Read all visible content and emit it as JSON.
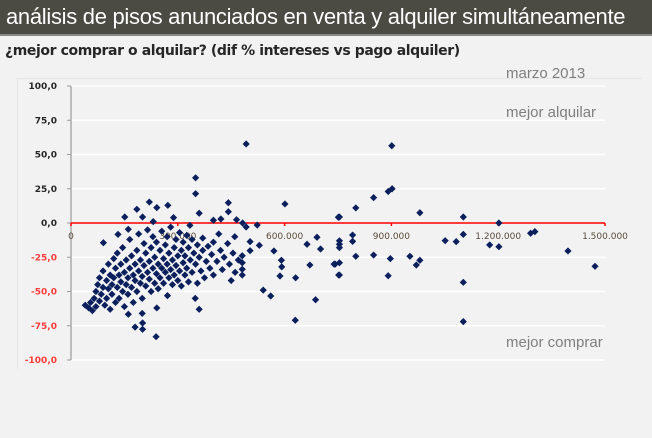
{
  "header": {
    "title": "análisis de pisos anunciados en venta y alquiler simultáneamente"
  },
  "subtitle": "¿mejor comprar o alquilar? (dif % intereses vs pago alquiler)",
  "annotations": {
    "date": "marzo 2013",
    "top": "mejor alquilar",
    "bottom": "mejor comprar"
  },
  "colors": {
    "points": "#0a1f5c",
    "zero_line": "#ff0000",
    "negative_labels": "#ff3b3b",
    "positive_labels": "#262626"
  },
  "chart_data": {
    "type": "scatter",
    "title": "",
    "xlabel": "",
    "ylabel": "",
    "xlim": [
      0,
      1500000
    ],
    "ylim": [
      -100,
      100
    ],
    "x_ticks": [
      "0",
      "300.000",
      "600.000",
      "900.000",
      "1.200.000",
      "1.500.000"
    ],
    "x_tick_values": [
      0,
      300000,
      600000,
      900000,
      1200000,
      1500000
    ],
    "y_ticks": [
      "100,0",
      "75,0",
      "50,0",
      "25,0",
      "0,0",
      "-25,0",
      "-50,0",
      "-75,0",
      "-100,0"
    ],
    "y_tick_values": [
      100,
      75,
      50,
      25,
      0,
      -25,
      -50,
      -75,
      -100
    ],
    "grid": "horizontal",
    "reference_line": 0,
    "marker": "diamond",
    "points": [
      [
        492000,
        57.7
      ],
      [
        901000,
        56.4
      ],
      [
        350000,
        33
      ],
      [
        350000,
        21.4
      ],
      [
        902000,
        25
      ],
      [
        891000,
        23
      ],
      [
        850000,
        18.5
      ],
      [
        601000,
        13.9
      ],
      [
        800000,
        11
      ],
      [
        442000,
        14.8
      ],
      [
        442000,
        8.2
      ],
      [
        360000,
        7.1
      ],
      [
        272000,
        12.9
      ],
      [
        220000,
        15.3
      ],
      [
        241000,
        11.2
      ],
      [
        185000,
        10
      ],
      [
        151000,
        4.4
      ],
      [
        201000,
        4.4
      ],
      [
        288000,
        3.9
      ],
      [
        231000,
        1
      ],
      [
        754000,
        4.4
      ],
      [
        751000,
        4.2
      ],
      [
        980000,
        7.5
      ],
      [
        1102000,
        4.4
      ],
      [
        1202000,
        0
      ],
      [
        334000,
        -1.7
      ],
      [
        421000,
        2.9
      ],
      [
        400000,
        2
      ],
      [
        465000,
        2.4
      ],
      [
        482000,
        0
      ],
      [
        492000,
        -2.9
      ],
      [
        523000,
        -1.5
      ],
      [
        161000,
        -4.6
      ],
      [
        132000,
        -8.3
      ],
      [
        91000,
        -14.4
      ],
      [
        1291000,
        -7.5
      ],
      [
        1303000,
        -6.3
      ],
      [
        1102000,
        -8.3
      ],
      [
        1051000,
        -12.9
      ],
      [
        1082000,
        -13.6
      ],
      [
        1176000,
        -16
      ],
      [
        1202000,
        -17.3
      ],
      [
        1396000,
        -20.4
      ],
      [
        1472000,
        -31.6
      ],
      [
        1102000,
        -43.3
      ],
      [
        1102000,
        -72
      ],
      [
        850000,
        -23.4
      ],
      [
        800000,
        -24.3
      ],
      [
        897000,
        -26
      ],
      [
        952000,
        -24.3
      ],
      [
        980000,
        -27.2
      ],
      [
        970000,
        -30.7
      ],
      [
        891000,
        -38.5
      ],
      [
        754000,
        -38
      ],
      [
        739000,
        -30
      ],
      [
        754000,
        -29
      ],
      [
        791000,
        -8.8
      ],
      [
        791000,
        -13.4
      ],
      [
        754000,
        -13
      ],
      [
        754000,
        -15.5
      ],
      [
        754000,
        -18
      ],
      [
        630000,
        -71
      ],
      [
        239000,
        -83
      ],
      [
        540000,
        -49
      ],
      [
        561000,
        -53.3
      ],
      [
        687000,
        -56
      ],
      [
        631000,
        -40
      ],
      [
        587000,
        -38.7
      ],
      [
        592000,
        -32
      ],
      [
        591000,
        -27.2
      ],
      [
        663000,
        -15.5
      ],
      [
        691000,
        -10.4
      ],
      [
        701000,
        -19
      ],
      [
        671000,
        -30.7
      ],
      [
        742000,
        -30
      ],
      [
        752000,
        -38
      ],
      [
        570000,
        -20.4
      ],
      [
        529000,
        -16.3
      ],
      [
        503000,
        -13.6
      ],
      [
        503000,
        -20.2
      ],
      [
        481000,
        -23.9
      ],
      [
        481000,
        -29
      ],
      [
        481000,
        -33.8
      ],
      [
        481000,
        -38
      ],
      [
        461000,
        -36
      ],
      [
        360000,
        -63
      ],
      [
        349000,
        -55
      ],
      [
        271000,
        -53
      ],
      [
        241000,
        -62
      ],
      [
        180000,
        -76
      ],
      [
        201000,
        -73
      ],
      [
        201000,
        -77.6
      ],
      [
        161000,
        -66.6
      ],
      [
        200000,
        -66
      ],
      [
        40000,
        -60
      ],
      [
        50000,
        -62
      ],
      [
        55000,
        -58
      ],
      [
        60000,
        -64
      ],
      [
        65000,
        -55
      ],
      [
        70000,
        -50
      ],
      [
        70000,
        -61
      ],
      [
        75000,
        -45
      ],
      [
        80000,
        -40
      ],
      [
        80000,
        -57
      ],
      [
        85000,
        -52
      ],
      [
        90000,
        -35
      ],
      [
        90000,
        -47
      ],
      [
        95000,
        -60
      ],
      [
        100000,
        -42
      ],
      [
        100000,
        -55
      ],
      [
        105000,
        -30
      ],
      [
        105000,
        -48
      ],
      [
        110000,
        -38
      ],
      [
        110000,
        -63
      ],
      [
        115000,
        -45
      ],
      [
        115000,
        -52
      ],
      [
        120000,
        -26
      ],
      [
        120000,
        -40
      ],
      [
        125000,
        -58
      ],
      [
        125000,
        -33
      ],
      [
        130000,
        -47
      ],
      [
        130000,
        -22
      ],
      [
        135000,
        -38
      ],
      [
        135000,
        -55
      ],
      [
        140000,
        -43
      ],
      [
        140000,
        -30
      ],
      [
        145000,
        -50
      ],
      [
        145000,
        -18
      ],
      [
        150000,
        -36
      ],
      [
        150000,
        -61
      ],
      [
        155000,
        -27
      ],
      [
        155000,
        -45
      ],
      [
        160000,
        -40
      ],
      [
        160000,
        -52
      ],
      [
        165000,
        -33
      ],
      [
        165000,
        -12
      ],
      [
        170000,
        -47
      ],
      [
        170000,
        -24
      ],
      [
        175000,
        -38
      ],
      [
        175000,
        -58
      ],
      [
        180000,
        -30
      ],
      [
        180000,
        -42
      ],
      [
        185000,
        -20
      ],
      [
        185000,
        -50
      ],
      [
        190000,
        -35
      ],
      [
        190000,
        -8
      ],
      [
        195000,
        -44
      ],
      [
        195000,
        -27
      ],
      [
        200000,
        -39
      ],
      [
        200000,
        -55
      ],
      [
        205000,
        -15
      ],
      [
        205000,
        -31
      ],
      [
        210000,
        -46
      ],
      [
        210000,
        -22
      ],
      [
        215000,
        -36
      ],
      [
        215000,
        -5
      ],
      [
        220000,
        -41
      ],
      [
        220000,
        -28
      ],
      [
        225000,
        -18
      ],
      [
        225000,
        -50
      ],
      [
        230000,
        -33
      ],
      [
        230000,
        -10
      ],
      [
        235000,
        -44
      ],
      [
        235000,
        -25
      ],
      [
        240000,
        -37
      ],
      [
        240000,
        -14
      ],
      [
        245000,
        -30
      ],
      [
        245000,
        -48
      ],
      [
        250000,
        -20
      ],
      [
        250000,
        -40
      ],
      [
        255000,
        -6
      ],
      [
        255000,
        -33
      ],
      [
        260000,
        -26
      ],
      [
        260000,
        -44
      ],
      [
        265000,
        -16
      ],
      [
        265000,
        -36
      ],
      [
        270000,
        -30
      ],
      [
        270000,
        -10
      ],
      [
        275000,
        -40
      ],
      [
        275000,
        -22
      ],
      [
        280000,
        -34
      ],
      [
        280000,
        -3
      ],
      [
        285000,
        -27
      ],
      [
        285000,
        -45
      ],
      [
        290000,
        -18
      ],
      [
        290000,
        -38
      ],
      [
        295000,
        -31
      ],
      [
        295000,
        -12
      ],
      [
        300000,
        -24
      ],
      [
        300000,
        -42
      ],
      [
        305000,
        -35
      ],
      [
        305000,
        -7
      ],
      [
        310000,
        -20
      ],
      [
        310000,
        -46
      ],
      [
        315000,
        -29
      ],
      [
        315000,
        -14
      ],
      [
        320000,
        -38
      ],
      [
        320000,
        -24
      ],
      [
        325000,
        -9
      ],
      [
        325000,
        -33
      ],
      [
        330000,
        -18
      ],
      [
        330000,
        -43
      ],
      [
        335000,
        -27
      ],
      [
        340000,
        -12
      ],
      [
        340000,
        -36
      ],
      [
        345000,
        -22
      ],
      [
        350000,
        -30
      ],
      [
        355000,
        -16
      ],
      [
        355000,
        -44
      ],
      [
        360000,
        -25
      ],
      [
        365000,
        -35
      ],
      [
        370000,
        -11
      ],
      [
        370000,
        -20
      ],
      [
        375000,
        -40
      ],
      [
        380000,
        -28
      ],
      [
        385000,
        -17
      ],
      [
        390000,
        -33
      ],
      [
        395000,
        -23
      ],
      [
        400000,
        -14
      ],
      [
        400000,
        -38
      ],
      [
        410000,
        -28
      ],
      [
        415000,
        -8
      ],
      [
        420000,
        -20
      ],
      [
        425000,
        -34
      ],
      [
        430000,
        -25
      ],
      [
        440000,
        -15
      ],
      [
        445000,
        -30
      ],
      [
        450000,
        -42
      ],
      [
        455000,
        -22
      ],
      [
        460000,
        -10
      ],
      [
        470000,
        -27
      ]
    ]
  }
}
